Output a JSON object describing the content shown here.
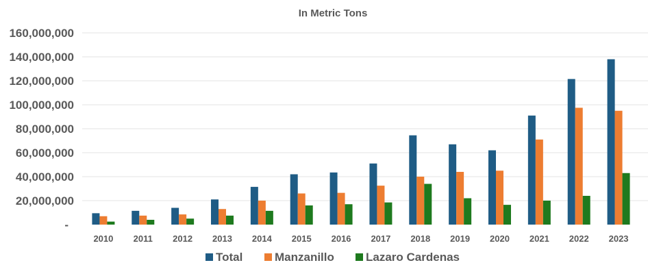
{
  "chart_data": {
    "type": "bar",
    "title": "In Metric Tons",
    "xlabel": "",
    "ylabel": "",
    "categories": [
      "2010",
      "2011",
      "2012",
      "2013",
      "2014",
      "2015",
      "2016",
      "2017",
      "2018",
      "2019",
      "2020",
      "2021",
      "2022",
      "2023"
    ],
    "yticks": [
      "-",
      "20,000,000",
      "40,000,000",
      "60,000,000",
      "80,000,000",
      "100,000,000",
      "120,000,000",
      "140,000,000",
      "160,000,000"
    ],
    "ylim": [
      0,
      160000000
    ],
    "grid": true,
    "legend_position": "bottom",
    "series": [
      {
        "name": "Total",
        "color": "#1f5c85",
        "values": [
          9500000,
          11500000,
          14000000,
          21000000,
          31500000,
          42000000,
          43500000,
          51000000,
          74500000,
          67000000,
          62000000,
          91000000,
          121500000,
          138000000
        ]
      },
      {
        "name": "Manzanillo",
        "color": "#ed7d31",
        "values": [
          7000000,
          7500000,
          8500000,
          13000000,
          20000000,
          26000000,
          26500000,
          32500000,
          40000000,
          44000000,
          45000000,
          71000000,
          97500000,
          95000000
        ]
      },
      {
        "name": "Lazaro Cardenas",
        "color": "#1e7a1e",
        "values": [
          2500000,
          4000000,
          5000000,
          7500000,
          11500000,
          16000000,
          17000000,
          18500000,
          34000000,
          22000000,
          16500000,
          20000000,
          24000000,
          43000000
        ]
      }
    ]
  }
}
